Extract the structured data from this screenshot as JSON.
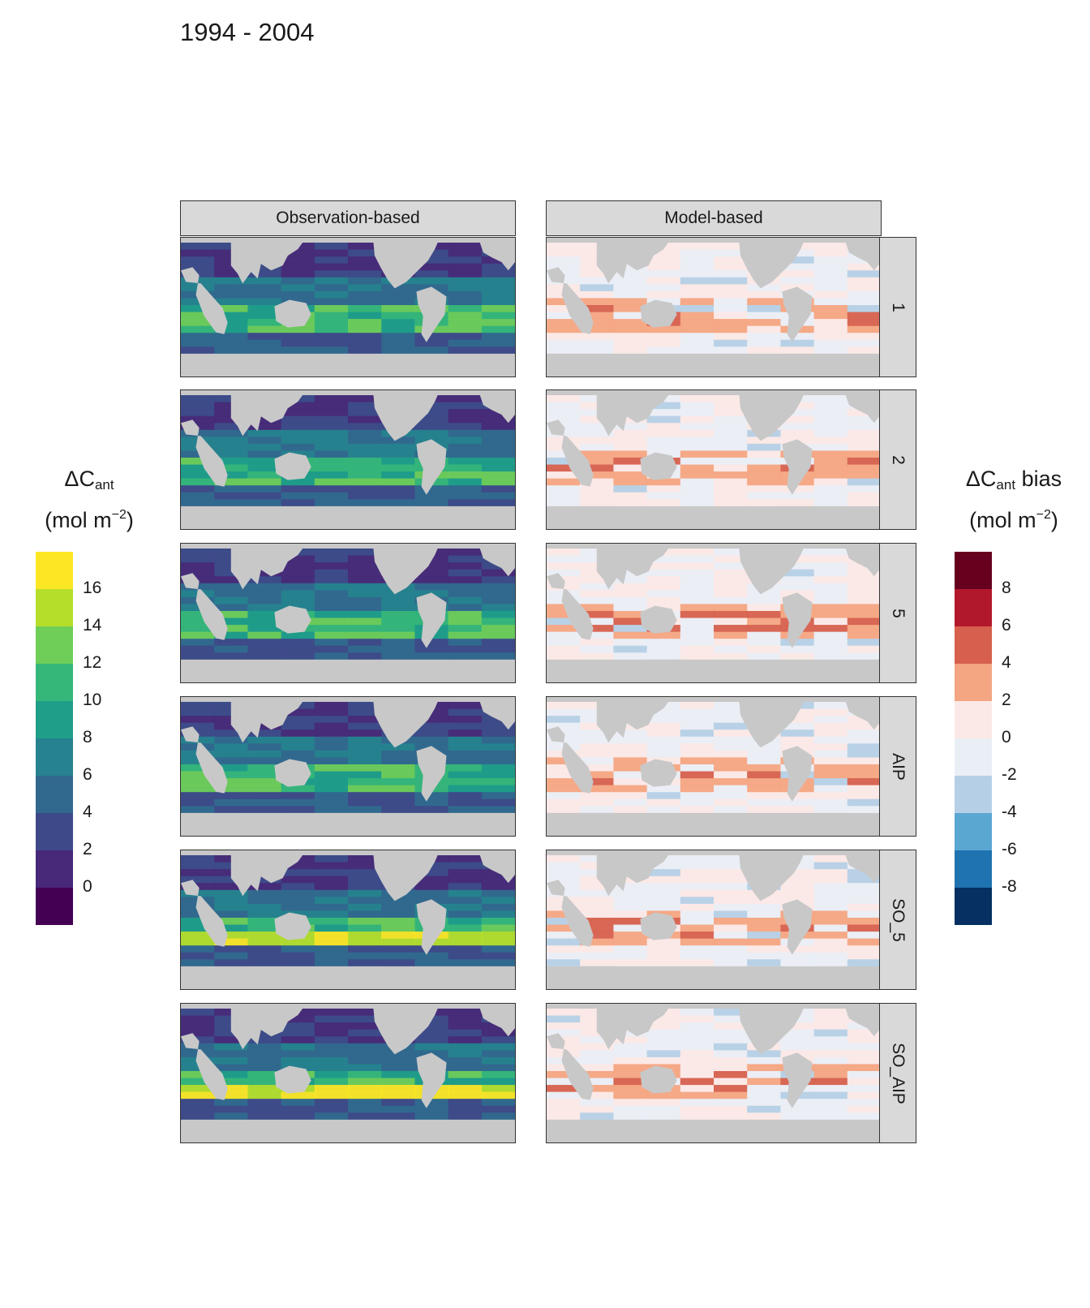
{
  "title": "1994 - 2004",
  "columns": [
    "Observation-based",
    "Model-based"
  ],
  "rows": [
    "1",
    "2",
    "5",
    "AIP",
    "SO_5",
    "SO_AIP"
  ],
  "legend_left": {
    "symbol": "ΔC",
    "subscript": "ant",
    "suffix": "",
    "unit_main": "(mol m",
    "unit_exp": "−2",
    "unit_close": ")",
    "ticks": [
      "16",
      "14",
      "12",
      "10",
      "8",
      "6",
      "4",
      "2",
      "0"
    ],
    "colors": [
      "#fde725",
      "#b5de2b",
      "#6ece58",
      "#35b779",
      "#1f9e89",
      "#26828e",
      "#31688e",
      "#3e4989",
      "#482878",
      "#440154"
    ]
  },
  "legend_right": {
    "symbol": "ΔC",
    "subscript": "ant",
    "suffix": " bias",
    "unit_main": "(mol m",
    "unit_exp": "−2",
    "unit_close": ")",
    "ticks": [
      "8",
      "6",
      "4",
      "2",
      "0",
      "-2",
      "-4",
      "-6",
      "-8"
    ],
    "colors": [
      "#67001f",
      "#b2182b",
      "#d6604d",
      "#f4a582",
      "#fbe9e7",
      "#eaeef5",
      "#b5d0e6",
      "#5aa7d2",
      "#1f73b0",
      "#053061"
    ]
  },
  "colors": {
    "land": "#c8c8c8",
    "strip": "#d9d9d9",
    "obs_ocean": "#2f7d8e",
    "model_ocean": "#f8e3e0"
  }
}
